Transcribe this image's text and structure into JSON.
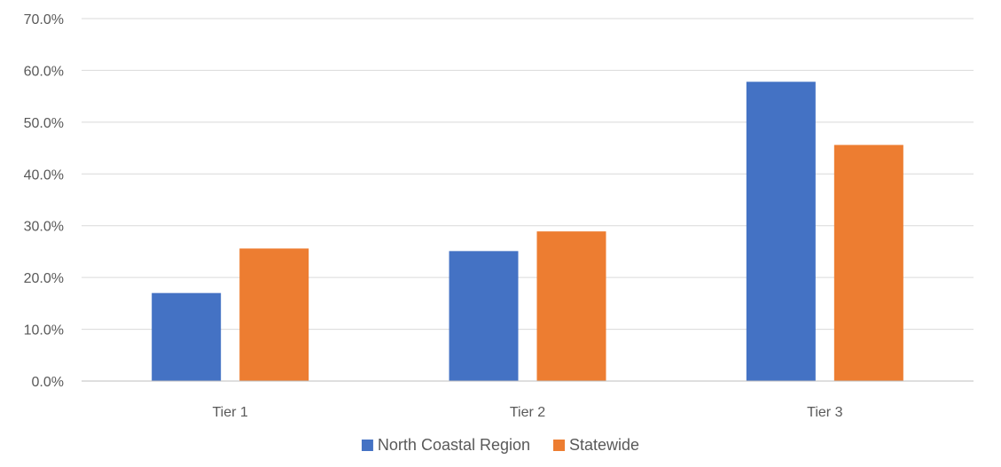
{
  "chart_data": {
    "type": "bar",
    "categories": [
      "Tier 1",
      "Tier 2",
      "Tier 3"
    ],
    "series": [
      {
        "name": "North Coastal Region",
        "values": [
          17.0,
          25.1,
          57.8
        ],
        "color": "#4472C4"
      },
      {
        "name": "Statewide",
        "values": [
          25.6,
          28.9,
          45.6
        ],
        "color": "#ED7D31"
      }
    ],
    "title": "",
    "xlabel": "",
    "ylabel": "",
    "ylim": [
      0,
      70
    ],
    "yticks": [
      "0.0%",
      "10.0%",
      "20.0%",
      "30.0%",
      "40.0%",
      "50.0%",
      "60.0%",
      "70.0%"
    ],
    "grid": true,
    "legend_position": "bottom",
    "gridline_color": "#D9D9D9",
    "axis_color": "#BFBFBF",
    "text_color": "#595959"
  }
}
